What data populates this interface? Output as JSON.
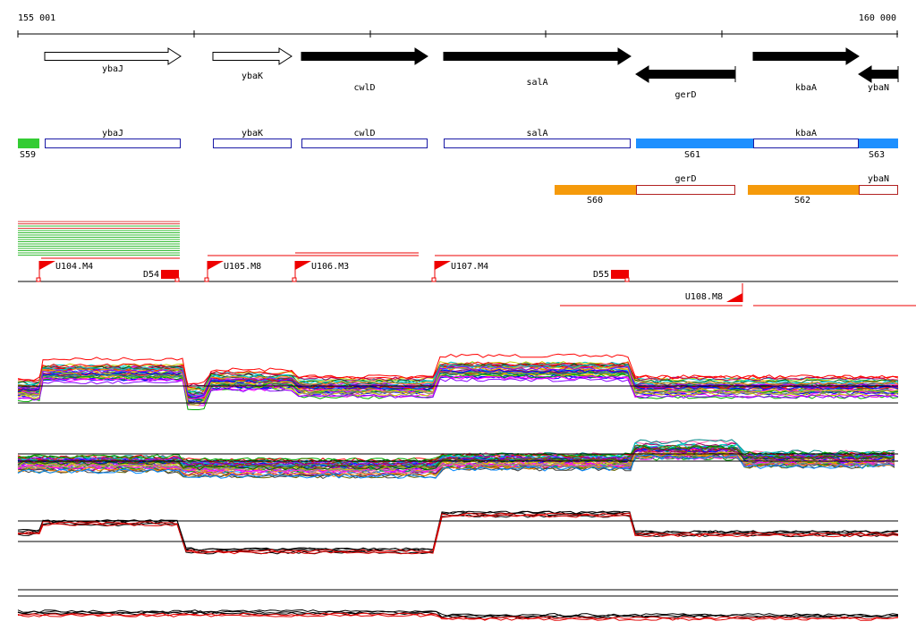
{
  "axis": {
    "start_label": "155 001",
    "end_label": "160 000"
  },
  "genes": [
    {
      "name": "ybaJ",
      "strand": "+",
      "style": "outline"
    },
    {
      "name": "ybaK",
      "strand": "+",
      "style": "outline"
    },
    {
      "name": "cwlD",
      "strand": "+",
      "style": "filled"
    },
    {
      "name": "salA",
      "strand": "+",
      "style": "filled"
    },
    {
      "name": "gerD",
      "strand": "-",
      "style": "filled"
    },
    {
      "name": "kbaA",
      "strand": "+",
      "style": "filled"
    },
    {
      "name": "ybaN",
      "strand": "-",
      "style": "filled"
    }
  ],
  "segments": [
    {
      "label": "S59",
      "color": "#33cc33"
    },
    {
      "label": "S60",
      "color": "#f59a0b"
    },
    {
      "label": "S61",
      "color": "#1e90ff"
    },
    {
      "label": "S62",
      "color": "#f59a0b"
    },
    {
      "label": "S63",
      "color": "#1e90ff"
    }
  ],
  "transcription_units": [
    {
      "label": "U104.M4"
    },
    {
      "label": "U105.M8"
    },
    {
      "label": "U106.M3"
    },
    {
      "label": "U107.M4"
    },
    {
      "label": "U108.M8"
    }
  ],
  "downregulated": [
    {
      "label": "D54"
    },
    {
      "label": "D55"
    }
  ],
  "colors": {
    "gene_outline": "#000000",
    "annotation_box": "#1a1aa6",
    "annotation_box_alt": "#b22222",
    "flag": "#ee0000",
    "profile_reference": "#000000",
    "profile_highlight": "#e00000"
  }
}
